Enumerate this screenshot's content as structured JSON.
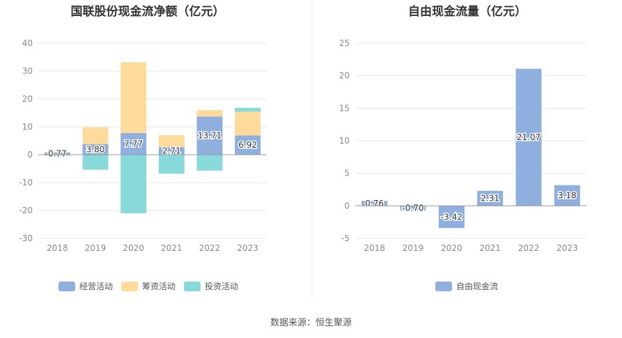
{
  "source_text": "数据来源：恒生聚源",
  "chart_data": [
    {
      "type": "bar",
      "stacked": true,
      "title": "国联股份现金流净额（亿元）",
      "categories": [
        "2018",
        "2019",
        "2020",
        "2021",
        "2022",
        "2023"
      ],
      "ylim": [
        -30,
        40
      ],
      "yticks": [
        40,
        30,
        20,
        10,
        0,
        -10,
        -20,
        -30
      ],
      "grid": true,
      "legend_position": "bottom",
      "series": [
        {
          "name": "经营活动",
          "color": "#8fb0de",
          "values": [
            0.77,
            3.8,
            7.77,
            2.71,
            13.71,
            6.92
          ],
          "labels": [
            "0.77",
            "3.80",
            "7.77",
            "2.71",
            "13.71",
            "6.92"
          ]
        },
        {
          "name": "筹资活动",
          "color": "#fedb9b",
          "values": [
            0.2,
            6.0,
            25.4,
            4.3,
            2.3,
            8.5
          ]
        },
        {
          "name": "投资活动",
          "color": "#88d9da",
          "values": [
            -0.3,
            -5.4,
            -21.0,
            -6.8,
            -5.7,
            1.4
          ]
        }
      ]
    },
    {
      "type": "bar",
      "title": "自由现金流量（亿元）",
      "categories": [
        "2018",
        "2019",
        "2020",
        "2021",
        "2022",
        "2023"
      ],
      "ylim": [
        -5,
        25
      ],
      "yticks": [
        25,
        20,
        15,
        10,
        5,
        0,
        -5
      ],
      "grid": true,
      "legend_position": "bottom",
      "series": [
        {
          "name": "自由现金流",
          "color": "#8fb0de",
          "values": [
            0.76,
            -0.7,
            -3.42,
            2.31,
            21.07,
            3.18
          ],
          "labels": [
            "0.76",
            "-0.70",
            "-3.42",
            "2.31",
            "21.07",
            "3.18"
          ]
        }
      ]
    }
  ]
}
